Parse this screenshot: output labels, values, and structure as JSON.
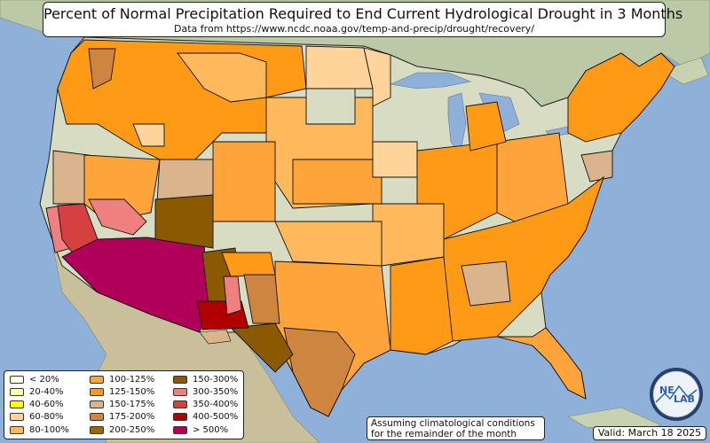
{
  "title": "Percent of Normal Precipitation Required to End Current Hydrological Drought in 3 Months",
  "subtitle": "Data from https://www.ncdc.noaa.gov/temp-and-precip/drought/recovery/",
  "legend": [
    {
      "label": "< 20%",
      "color": "#fffde8"
    },
    {
      "label": "20-40%",
      "color": "#ffffb0"
    },
    {
      "label": "40-60%",
      "color": "#ffff00"
    },
    {
      "label": "60-80%",
      "color": "#ffd49a"
    },
    {
      "label": "80-100%",
      "color": "#ffb85c"
    },
    {
      "label": "100-125%",
      "color": "#ffa43a"
    },
    {
      "label": "125-150%",
      "color": "#ff9a16"
    },
    {
      "label": "150-175%",
      "color": "#d9b48c"
    },
    {
      "label": "175-200%",
      "color": "#cd853f"
    },
    {
      "label": "200-250%",
      "color": "#a0640e"
    },
    {
      "label": "150-300%",
      "color": "#8b5a00"
    },
    {
      "label": "300-350%",
      "color": "#f08080"
    },
    {
      "label": "350-400%",
      "color": "#d64040"
    },
    {
      "label": "400-500%",
      "color": "#b00000"
    },
    {
      "label": "> 500%",
      "color": "#b0005a"
    }
  ],
  "note_line1": "Assuming climatological conditions",
  "note_line2": "for the remainder of the month",
  "valid": "Valid: March 18 2025",
  "logo_text_1": "NE",
  "logo_text_2": "LAB",
  "colors": {
    "ocean": "#8fb0d8",
    "land": "#c9d2b0"
  }
}
